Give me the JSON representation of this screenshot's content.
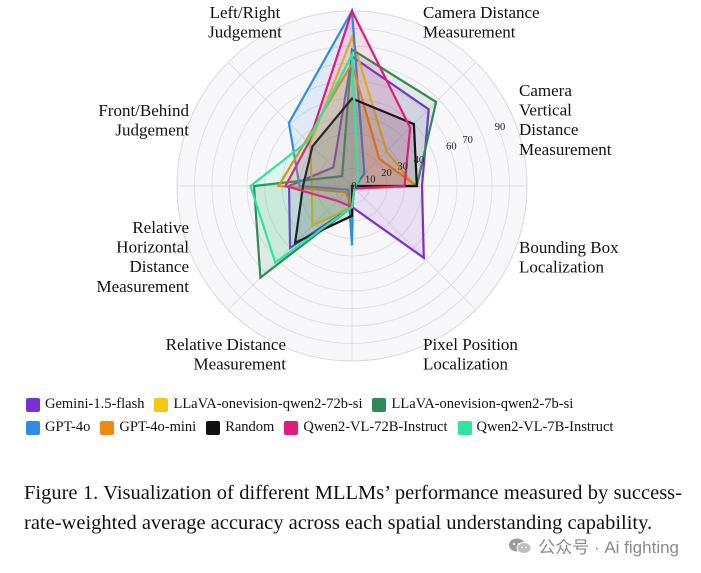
{
  "chart_data": {
    "type": "radar",
    "axes": [
      "Left/Right Judgement",
      "Camera Distance Measurement",
      "Camera Vertical Distance Measurement",
      "Bounding Box Localization",
      "Pixel Position Localization",
      "Relative Distance Measurement",
      "Relative Horizontal Distance Measurement",
      "Front/Behind Judgement"
    ],
    "axis_label_lines": [
      [
        "Left/Right",
        "Judgement"
      ],
      [
        "Camera Distance",
        "Measurement"
      ],
      [
        "Camera",
        "Vertical",
        "Distance",
        "Measurement"
      ],
      [
        "Bounding Box",
        "Localization"
      ],
      [
        "Pixel Position",
        "Localization"
      ],
      [
        "Relative Distance",
        "Measurement"
      ],
      [
        "Relative",
        "Horizontal",
        "Distance",
        "Measurement"
      ],
      [
        "Front/Behind",
        "Judgement"
      ]
    ],
    "radial_ticks": [
      0,
      10,
      20,
      30,
      40,
      60,
      70,
      90
    ],
    "rlim": [
      0,
      100
    ],
    "series": [
      {
        "name": "Gemini-1.5-flash",
        "color": "#7b2fd3",
        "values": [
          74,
          62,
          40,
          58,
          12,
          50,
          36,
          15
        ]
      },
      {
        "name": "LLaVA-onevision-qwen2-72b-si",
        "color": "#f2c811",
        "values": [
          85,
          28,
          36,
          2,
          12,
          32,
          23,
          34
        ]
      },
      {
        "name": "LLaVA-onevision-qwen2-7b-si",
        "color": "#2e8a56",
        "values": [
          78,
          68,
          37,
          2,
          12,
          74,
          56,
          8
        ]
      },
      {
        "name": "GPT-4o",
        "color": "#2f8ee3",
        "values": [
          100,
          10,
          2,
          1,
          34,
          3,
          30,
          51
        ]
      },
      {
        "name": "GPT-4o-mini",
        "color": "#f08a12",
        "values": [
          70,
          22,
          37,
          2,
          12,
          5,
          42,
          37
        ]
      },
      {
        "name": "Random",
        "color": "#111111",
        "values": [
          50,
          50,
          37,
          0,
          17,
          46,
          28,
          32
        ]
      },
      {
        "name": "Qwen2-VL-72B-Instruct",
        "color": "#e3197c",
        "values": [
          100,
          47,
          30,
          2,
          12,
          12,
          38,
          35
        ]
      },
      {
        "name": "Qwen2-VL-7B-Instruct",
        "color": "#2ee4a0",
        "values": [
          75,
          5,
          2,
          2,
          12,
          62,
          58,
          36
        ]
      }
    ],
    "legend_position": "bottom"
  },
  "caption": "Figure 1.  Visualization of different MLLMs’ performance measured by success-rate-weighted average accuracy across each spatial understanding capability.",
  "watermark": "公众号 · Ai fighting"
}
